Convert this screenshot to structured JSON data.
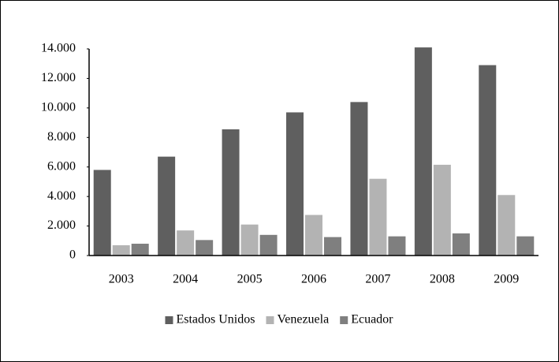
{
  "chart_data": {
    "type": "bar",
    "categories": [
      "2003",
      "2004",
      "2005",
      "2006",
      "2007",
      "2008",
      "2009"
    ],
    "series": [
      {
        "name": "Estados Unidos",
        "color": "#5f5f5f",
        "values": [
          5800,
          6700,
          8550,
          9700,
          10400,
          14100,
          12900
        ]
      },
      {
        "name": "Venezuela",
        "color": "#b3b3b3",
        "values": [
          700,
          1700,
          2100,
          2750,
          5200,
          6150,
          4100
        ]
      },
      {
        "name": "Ecuador",
        "color": "#7f7f7f",
        "values": [
          800,
          1050,
          1400,
          1250,
          1300,
          1500,
          1300
        ]
      }
    ],
    "ylim": [
      0,
      14000
    ],
    "yticks": [
      0,
      {
        "value": 2000,
        "label": "2.000"
      },
      {
        "value": 4000,
        "label": "4.000"
      },
      {
        "value": 6000,
        "label": "6.000"
      },
      {
        "value": 8000,
        "label": "8.000"
      },
      {
        "value": 10000,
        "label": "10.000"
      },
      {
        "value": 12000,
        "label": "12.000"
      },
      {
        "value": 14000,
        "label": "14.000"
      }
    ],
    "grid": false,
    "legend": "bottom"
  }
}
